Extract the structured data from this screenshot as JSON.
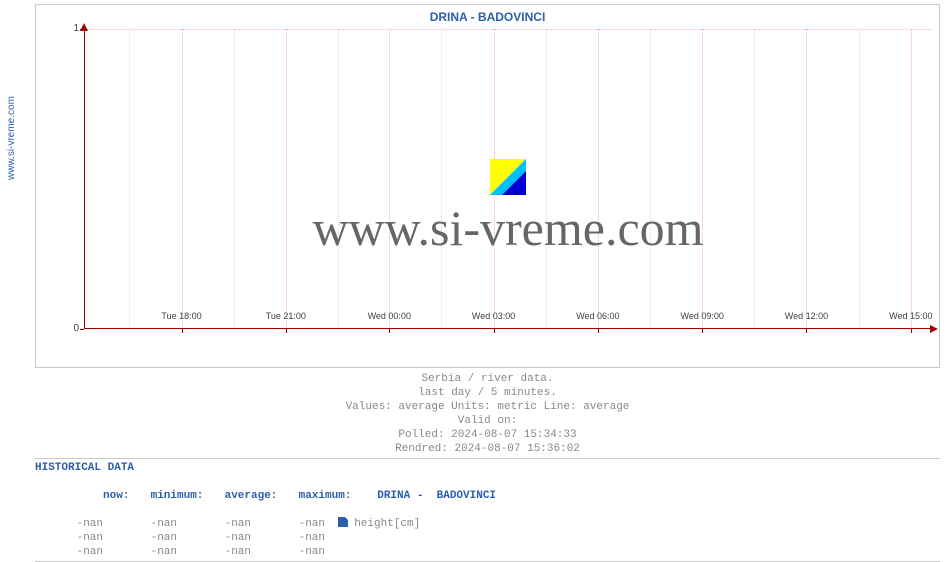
{
  "site_label": "www.si-vreme.com",
  "chart": {
    "type": "line",
    "title": "DRINA -  BADOVINCI",
    "ylim": [
      0,
      1
    ],
    "yticks": [
      0,
      1
    ],
    "xaxis_labels": [
      "Tue 18:00",
      "Tue 21:00",
      "Wed 00:00",
      "Wed 03:00",
      "Wed 06:00",
      "Wed 09:00",
      "Wed 12:00",
      "Wed 15:00"
    ],
    "xaxis_positions_pct": [
      11.5,
      23.8,
      36.0,
      48.3,
      60.6,
      72.9,
      85.2,
      97.5
    ],
    "minor_vgrid_pct": [
      5.35,
      17.65,
      29.9,
      42.15,
      54.45,
      66.75,
      79.05,
      91.35
    ],
    "grid_color": "#ffb0b0",
    "axis_color": "#a00000",
    "background_color": "#ffffff",
    "watermark_text": "www.si-vreme.com",
    "watermark_color": "#666666",
    "wm_icon_colors": {
      "tri": "#ffff00",
      "stripe": "#00bfff",
      "base": "#0000d0"
    },
    "border_color": "#c8c8c8"
  },
  "meta": {
    "l1": "Serbia / river data.",
    "l2": "last day / 5 minutes.",
    "l3": "Values: average  Units: metric  Line: average",
    "l4": "Valid on:",
    "l5": "Polled: 2024-08-07 15:34:33",
    "l6": "Rendred: 2024-08-07 15:36:02"
  },
  "historical": {
    "title": "HISTORICAL DATA",
    "headers": {
      "now": "now:",
      "min": "minimum:",
      "avg": "average:",
      "max": "maximum:",
      "series": "DRINA -  BADOVINCI"
    },
    "param_label": "height[cm]",
    "rows": [
      {
        "now": "-nan",
        "min": "-nan",
        "avg": "-nan",
        "max": "-nan",
        "has_chip": true
      },
      {
        "now": "-nan",
        "min": "-nan",
        "avg": "-nan",
        "max": "-nan",
        "has_chip": false
      },
      {
        "now": "-nan",
        "min": "-nan",
        "avg": "-nan",
        "max": "-nan",
        "has_chip": false
      }
    ],
    "chip_color": "#2b5faa"
  }
}
